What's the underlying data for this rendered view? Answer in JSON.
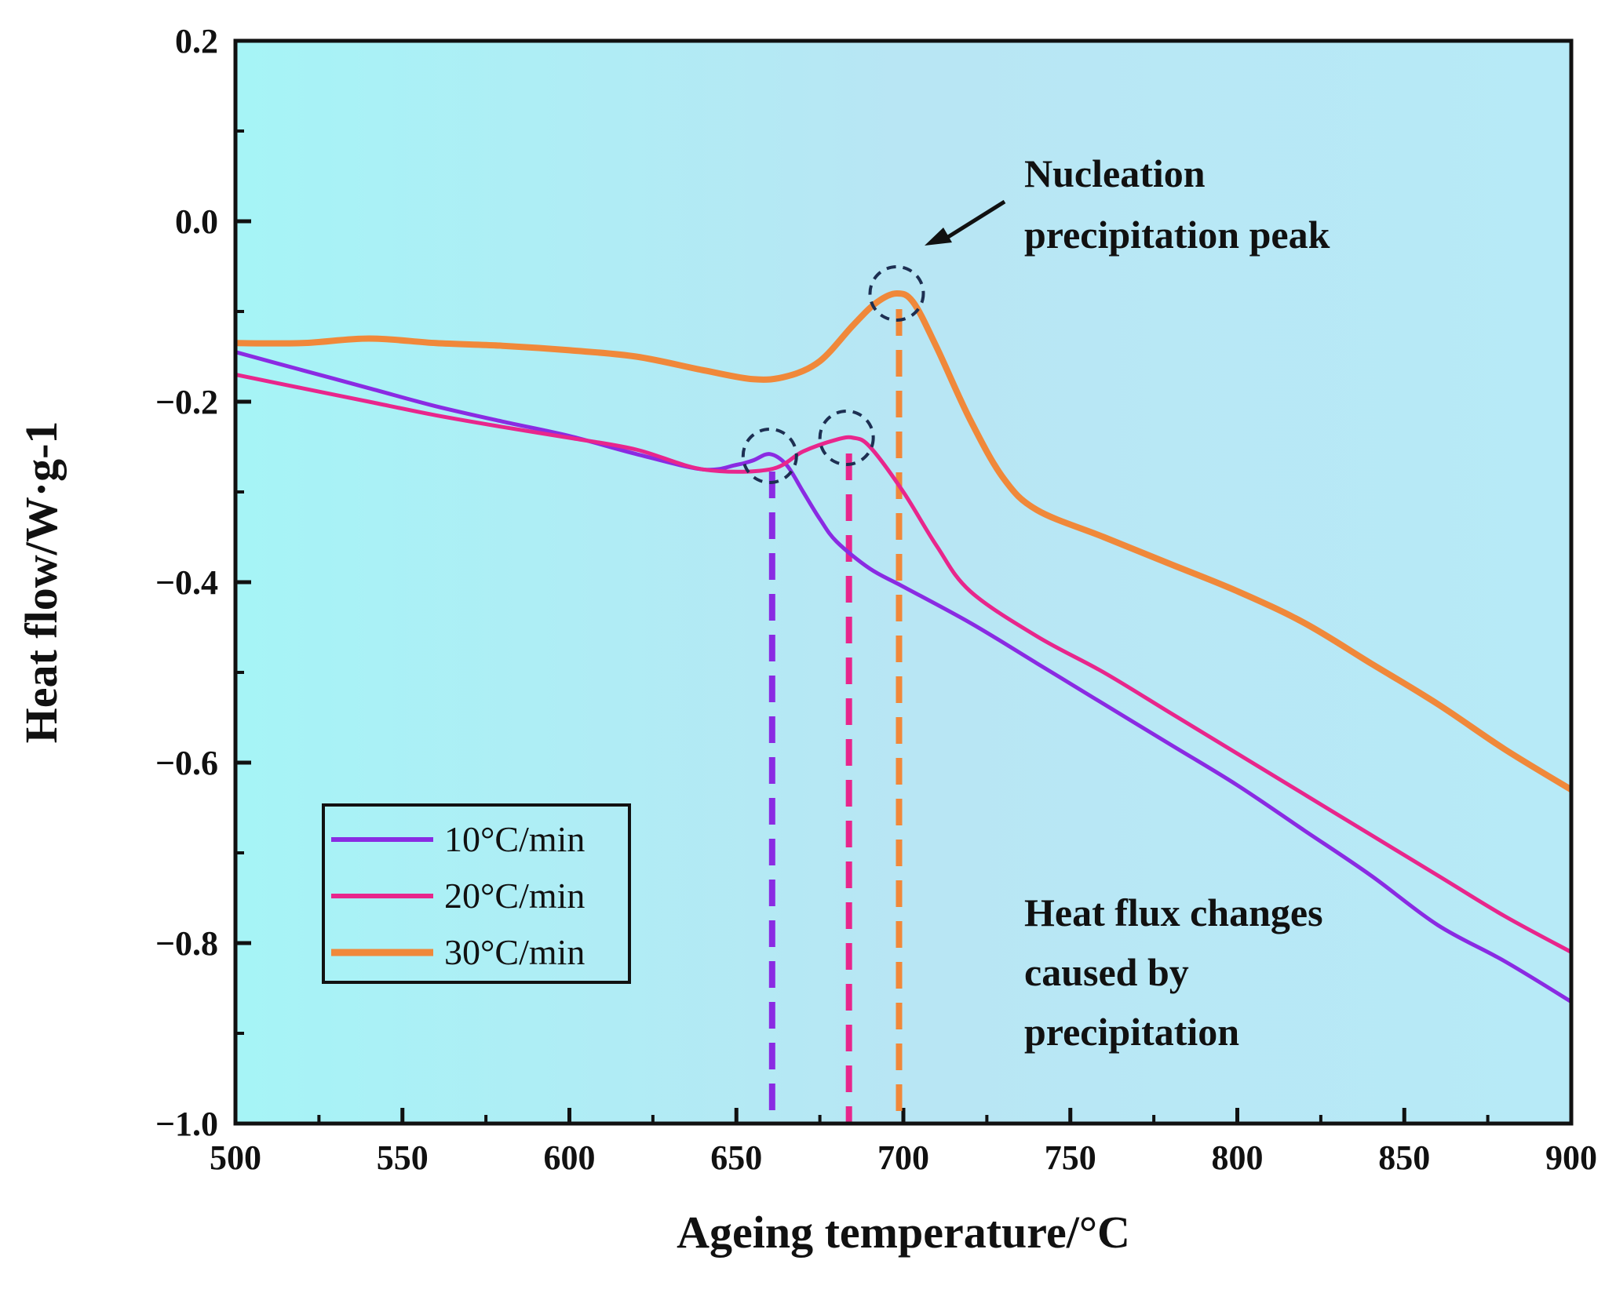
{
  "chart_data": {
    "type": "line",
    "xlabel": "Ageing temperature/°C",
    "ylabel": "Heat flow/W·g-1",
    "xlim": [
      500,
      900
    ],
    "ylim": [
      -1.0,
      0.2
    ],
    "x_ticks": [
      500,
      550,
      600,
      650,
      700,
      750,
      800,
      850,
      900
    ],
    "x_tick_labels": [
      "500",
      "550",
      "600",
      "650",
      "700",
      "750",
      "800",
      "850",
      "900"
    ],
    "y_ticks": [
      0.2,
      0.0,
      -0.2,
      -0.4,
      -0.6,
      -0.8,
      -1.0
    ],
    "y_tick_labels": [
      "0.2",
      "0.0",
      "−0.2",
      "−0.4",
      "−0.6",
      "−0.8",
      "−1.0"
    ],
    "background_colors": [
      "#a6f4f6",
      "#b8e6f4",
      "#b7eaf7"
    ],
    "legend_position": "bottom-left",
    "series": [
      {
        "name": "10°C/min",
        "color": "#8a2be2",
        "peak": [
          660,
          -0.26
        ],
        "x": [
          500,
          520,
          540,
          560,
          580,
          600,
          620,
          640,
          650,
          655,
          660,
          665,
          670,
          675,
          680,
          690,
          700,
          720,
          740,
          760,
          780,
          800,
          820,
          840,
          860,
          880,
          900
        ],
        "y": [
          -0.145,
          -0.165,
          -0.185,
          -0.205,
          -0.222,
          -0.238,
          -0.258,
          -0.275,
          -0.27,
          -0.265,
          -0.258,
          -0.27,
          -0.3,
          -0.33,
          -0.355,
          -0.385,
          -0.405,
          -0.445,
          -0.49,
          -0.535,
          -0.58,
          -0.625,
          -0.675,
          -0.725,
          -0.78,
          -0.82,
          -0.865
        ]
      },
      {
        "name": "20°C/min",
        "color": "#e8268c",
        "peak": [
          683,
          -0.24
        ],
        "x": [
          500,
          520,
          540,
          560,
          580,
          600,
          620,
          640,
          660,
          670,
          680,
          685,
          690,
          700,
          710,
          720,
          740,
          760,
          780,
          800,
          820,
          840,
          860,
          880,
          900
        ],
        "y": [
          -0.17,
          -0.185,
          -0.2,
          -0.215,
          -0.228,
          -0.24,
          -0.253,
          -0.275,
          -0.275,
          -0.255,
          -0.242,
          -0.24,
          -0.25,
          -0.3,
          -0.36,
          -0.41,
          -0.46,
          -0.5,
          -0.545,
          -0.59,
          -0.635,
          -0.68,
          -0.725,
          -0.77,
          -0.81
        ]
      },
      {
        "name": "30°C/min",
        "color": "#f0883a",
        "peak": [
          698,
          -0.08
        ],
        "x": [
          500,
          520,
          540,
          560,
          580,
          600,
          620,
          640,
          655,
          665,
          675,
          685,
          692,
          698,
          703,
          710,
          720,
          730,
          740,
          760,
          780,
          800,
          820,
          840,
          860,
          880,
          900
        ],
        "y": [
          -0.135,
          -0.135,
          -0.13,
          -0.135,
          -0.138,
          -0.143,
          -0.15,
          -0.165,
          -0.175,
          -0.172,
          -0.155,
          -0.115,
          -0.09,
          -0.08,
          -0.09,
          -0.14,
          -0.22,
          -0.285,
          -0.32,
          -0.35,
          -0.38,
          -0.41,
          -0.445,
          -0.49,
          -0.535,
          -0.585,
          -0.63
        ]
      }
    ],
    "annotations": [
      {
        "lines": [
          "Nucleation",
          "precipitation peak"
        ],
        "arrow_from": [
          730,
          -0.03
        ],
        "arrow_to": [
          708,
          -0.02
        ]
      },
      {
        "lines": [
          "Heat flux changes",
          "caused by",
          "precipitation"
        ]
      }
    ]
  }
}
